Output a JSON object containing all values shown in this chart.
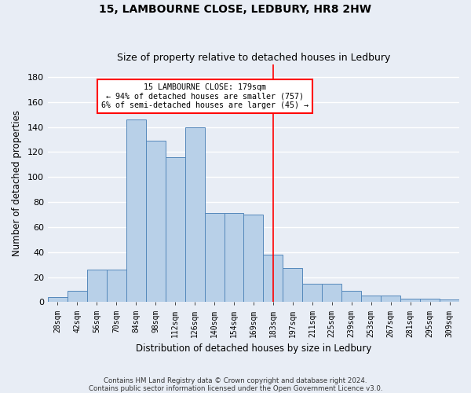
{
  "title": "15, LAMBOURNE CLOSE, LEDBURY, HR8 2HW",
  "subtitle": "Size of property relative to detached houses in Ledbury",
  "xlabel": "Distribution of detached houses by size in Ledbury",
  "ylabel": "Number of detached properties",
  "footer_line1": "Contains HM Land Registry data © Crown copyright and database right 2024.",
  "footer_line2": "Contains public sector information licensed under the Open Government Licence v3.0.",
  "bins": [
    "28sqm",
    "42sqm",
    "56sqm",
    "70sqm",
    "84sqm",
    "98sqm",
    "112sqm",
    "126sqm",
    "140sqm",
    "154sqm",
    "169sqm",
    "183sqm",
    "197sqm",
    "211sqm",
    "225sqm",
    "239sqm",
    "253sqm",
    "267sqm",
    "281sqm",
    "295sqm",
    "309sqm"
  ],
  "values": [
    4,
    9,
    26,
    26,
    146,
    129,
    116,
    140,
    71,
    71,
    70,
    38,
    27,
    15,
    15,
    9,
    5,
    5,
    3,
    3,
    2
  ],
  "bar_color": "#b8d0e8",
  "bar_edge_color": "#5588bb",
  "annotation_line1": "  15 LAMBOURNE CLOSE: 179sqm  ",
  "annotation_line2": "← 94% of detached houses are smaller (757)",
  "annotation_line3": "6% of semi-detached houses are larger (45) →",
  "vline_index": 11,
  "vline_color": "red",
  "annotation_box_color": "white",
  "annotation_box_edge": "red",
  "ylim": [
    0,
    190
  ],
  "yticks": [
    0,
    20,
    40,
    60,
    80,
    100,
    120,
    140,
    160,
    180
  ],
  "background_color": "#e8edf5",
  "grid_color": "white",
  "title_fontsize": 10,
  "subtitle_fontsize": 9
}
